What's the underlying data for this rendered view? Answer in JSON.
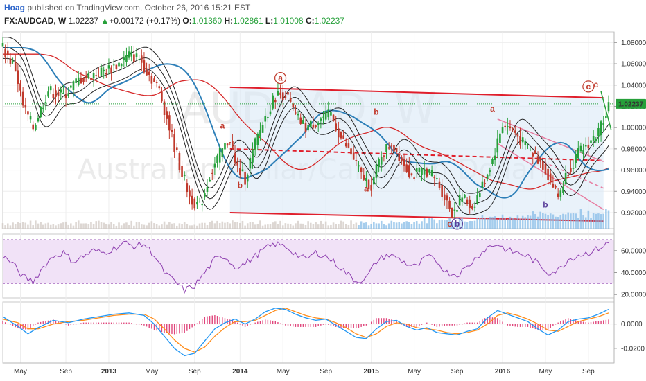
{
  "header": {
    "publisher": "Hoag",
    "published_text": "published on TradingView.com, October 26, 2016 15:21 EST",
    "symbol": "FX:AUDCAD, W",
    "last": "1.02237",
    "change_arrow": "▲",
    "change": "+0.00172 (+0.17%)",
    "open_label": "O:",
    "open": "1.01360",
    "high_label": "H:",
    "high": "1.02861",
    "low_label": "L:",
    "low": "1.01008",
    "close_label": "C:",
    "close": "1.02237"
  },
  "watermark": {
    "symbol": "AUDCAD, W",
    "description": "Australian Dollar/Canadian Dollar"
  },
  "colors": {
    "up": "#26a03a",
    "down": "#c0392b",
    "channel": "#e01e2b",
    "channel_fill": "#dbeaf7",
    "ma_red": "#d62728",
    "ma_blue": "#2d7fb8",
    "rsi": "#8e3fb0",
    "rsi_band": "#f1e2f7",
    "macd": "#2196f3",
    "signal": "#ff8c1a",
    "hist": "#e0457b",
    "price_badge": "#26a03a"
  },
  "chart_data": [
    {
      "type": "candlestick",
      "panel": "price",
      "ylim": [
        0.905,
        1.09
      ],
      "y_ticks": [
        "1.08000",
        "1.06000",
        "1.04000",
        "1.02000",
        "1.00000",
        "0.98000",
        "0.96000",
        "0.94000",
        "0.92000"
      ],
      "y_tick_values": [
        1.08,
        1.06,
        1.04,
        1.02,
        1.0,
        0.98,
        0.96,
        0.94,
        0.92
      ],
      "last_price": "1.02237",
      "last_value": 1.02237,
      "x_ticks": [
        "May",
        "Sep",
        "2013",
        "May",
        "Sep",
        "2014",
        "May",
        "Sep",
        "2015",
        "May",
        "Sep",
        "2016",
        "May",
        "Sep"
      ],
      "x_tick_weeks": [
        7,
        25,
        42,
        59,
        76,
        94,
        111,
        128,
        146,
        163,
        180,
        198,
        215,
        232
      ],
      "price_path": [
        [
          0,
          1.075
        ],
        [
          5,
          1.055
        ],
        [
          8,
          1.02
        ],
        [
          12,
          1.0
        ],
        [
          18,
          1.035
        ],
        [
          24,
          1.03
        ],
        [
          30,
          1.045
        ],
        [
          36,
          1.05
        ],
        [
          42,
          1.055
        ],
        [
          46,
          1.06
        ],
        [
          50,
          1.068
        ],
        [
          54,
          1.065
        ],
        [
          58,
          1.05
        ],
        [
          62,
          1.035
        ],
        [
          66,
          1.0
        ],
        [
          70,
          0.965
        ],
        [
          74,
          0.935
        ],
        [
          78,
          0.925
        ],
        [
          82,
          0.955
        ],
        [
          86,
          0.975
        ],
        [
          90,
          0.99
        ],
        [
          92,
          0.965
        ],
        [
          96,
          0.952
        ],
        [
          100,
          0.985
        ],
        [
          104,
          1.01
        ],
        [
          108,
          1.03
        ],
        [
          112,
          1.032
        ],
        [
          116,
          1.01
        ],
        [
          120,
          1.0
        ],
        [
          126,
          1.008
        ],
        [
          130,
          1.012
        ],
        [
          134,
          0.99
        ],
        [
          138,
          0.975
        ],
        [
          142,
          0.955
        ],
        [
          146,
          0.945
        ],
        [
          150,
          0.975
        ],
        [
          154,
          0.985
        ],
        [
          158,
          0.97
        ],
        [
          162,
          0.955
        ],
        [
          168,
          0.96
        ],
        [
          172,
          0.95
        ],
        [
          176,
          0.93
        ],
        [
          178,
          0.92
        ],
        [
          182,
          0.935
        ],
        [
          186,
          0.925
        ],
        [
          190,
          0.945
        ],
        [
          194,
          0.97
        ],
        [
          198,
          1.003
        ],
        [
          202,
          0.998
        ],
        [
          206,
          0.985
        ],
        [
          210,
          0.975
        ],
        [
          214,
          0.965
        ],
        [
          218,
          0.945
        ],
        [
          220,
          0.935
        ],
        [
          224,
          0.96
        ],
        [
          228,
          0.975
        ],
        [
          232,
          0.985
        ],
        [
          236,
          0.995
        ],
        [
          238,
          1.01
        ],
        [
          240,
          1.02237
        ]
      ],
      "wave_labels": [
        {
          "text": "a",
          "week": 87,
          "price": 0.999,
          "circled": false,
          "color": "#c0392b"
        },
        {
          "text": "b",
          "week": 94,
          "price": 0.943,
          "circled": false,
          "color": "#c0392b"
        },
        {
          "text": "a",
          "week": 110,
          "price": 1.044,
          "circled": true,
          "color": "#c0392b"
        },
        {
          "text": "b",
          "week": 148,
          "price": 1.012,
          "circled": false,
          "color": "#c0392b"
        },
        {
          "text": "a",
          "week": 144,
          "price": 0.94,
          "circled": false,
          "color": "#c0392b"
        },
        {
          "text": "c",
          "week": 177,
          "price": 0.907,
          "circled": false,
          "color": "#c0392b"
        },
        {
          "text": "b",
          "week": 180,
          "price": 0.907,
          "circled": true,
          "color": "#5a3f9a"
        },
        {
          "text": "a",
          "week": 194,
          "price": 1.015,
          "circled": false,
          "color": "#c0392b"
        },
        {
          "text": "b",
          "week": 215,
          "price": 0.925,
          "circled": false,
          "color": "#5a3f9a"
        },
        {
          "text": "c",
          "week": 232,
          "price": 1.036,
          "circled": true,
          "color": "#c0392b"
        },
        {
          "text": "c",
          "week": 235,
          "price": 1.038,
          "circled": false,
          "color": "#c0392b"
        }
      ]
    },
    {
      "type": "line",
      "panel": "rsi",
      "name": "RSI",
      "ylim": [
        17,
        75
      ],
      "y_ticks": [
        "60.0000",
        "40.0000",
        "20.0000"
      ],
      "y_tick_values": [
        60,
        40,
        20
      ],
      "band": [
        30,
        70
      ],
      "points": [
        [
          0,
          55
        ],
        [
          4,
          48
        ],
        [
          8,
          36
        ],
        [
          12,
          32
        ],
        [
          16,
          45
        ],
        [
          20,
          55
        ],
        [
          24,
          58
        ],
        [
          28,
          50
        ],
        [
          32,
          55
        ],
        [
          36,
          60
        ],
        [
          40,
          58
        ],
        [
          44,
          62
        ],
        [
          48,
          67
        ],
        [
          52,
          64
        ],
        [
          56,
          66
        ],
        [
          60,
          56
        ],
        [
          64,
          40
        ],
        [
          68,
          32
        ],
        [
          72,
          24
        ],
        [
          76,
          28
        ],
        [
          80,
          40
        ],
        [
          84,
          52
        ],
        [
          88,
          55
        ],
        [
          92,
          45
        ],
        [
          96,
          48
        ],
        [
          100,
          55
        ],
        [
          104,
          62
        ],
        [
          108,
          66
        ],
        [
          112,
          64
        ],
        [
          116,
          57
        ],
        [
          120,
          52
        ],
        [
          124,
          58
        ],
        [
          128,
          55
        ],
        [
          132,
          48
        ],
        [
          136,
          40
        ],
        [
          140,
          32
        ],
        [
          144,
          35
        ],
        [
          148,
          50
        ],
        [
          152,
          56
        ],
        [
          156,
          54
        ],
        [
          160,
          48
        ],
        [
          164,
          45
        ],
        [
          168,
          55
        ],
        [
          172,
          50
        ],
        [
          176,
          40
        ],
        [
          180,
          38
        ],
        [
          184,
          45
        ],
        [
          188,
          55
        ],
        [
          192,
          63
        ],
        [
          196,
          66
        ],
        [
          200,
          60
        ],
        [
          204,
          58
        ],
        [
          208,
          55
        ],
        [
          212,
          48
        ],
        [
          216,
          40
        ],
        [
          220,
          42
        ],
        [
          224,
          52
        ],
        [
          228,
          56
        ],
        [
          232,
          58
        ],
        [
          236,
          62
        ],
        [
          240,
          67
        ]
      ]
    },
    {
      "type": "line",
      "panel": "macd",
      "name": "MACD",
      "ylim": [
        -0.032,
        0.018
      ],
      "y_ticks": [
        "0.0000",
        "-0.0200"
      ],
      "y_tick_values": [
        0,
        -0.02
      ],
      "series": [
        {
          "name": "MACD",
          "points": [
            [
              0,
              0.006
            ],
            [
              6,
              -0.002
            ],
            [
              10,
              -0.008
            ],
            [
              14,
              -0.003
            ],
            [
              20,
              0.003
            ],
            [
              26,
              0.001
            ],
            [
              32,
              0.004
            ],
            [
              38,
              0.006
            ],
            [
              44,
              0.008
            ],
            [
              50,
              0.009
            ],
            [
              56,
              0.007
            ],
            [
              60,
              0.0
            ],
            [
              64,
              -0.01
            ],
            [
              68,
              -0.02
            ],
            [
              72,
              -0.026
            ],
            [
              76,
              -0.024
            ],
            [
              80,
              -0.014
            ],
            [
              84,
              -0.004
            ],
            [
              88,
              0.001
            ],
            [
              92,
              0.004
            ],
            [
              96,
              0.0
            ],
            [
              100,
              0.004
            ],
            [
              104,
              0.01
            ],
            [
              108,
              0.013
            ],
            [
              112,
              0.012
            ],
            [
              116,
              0.008
            ],
            [
              120,
              0.005
            ],
            [
              124,
              0.003
            ],
            [
              128,
              0.004
            ],
            [
              132,
              -0.001
            ],
            [
              136,
              -0.006
            ],
            [
              140,
              -0.011
            ],
            [
              144,
              -0.012
            ],
            [
              148,
              -0.004
            ],
            [
              152,
              0.002
            ],
            [
              156,
              0.003
            ],
            [
              160,
              -0.002
            ],
            [
              164,
              -0.005
            ],
            [
              168,
              -0.003
            ],
            [
              172,
              -0.007
            ],
            [
              176,
              -0.008
            ],
            [
              180,
              -0.009
            ],
            [
              184,
              -0.006
            ],
            [
              188,
              -0.004
            ],
            [
              192,
              0.005
            ],
            [
              196,
              0.011
            ],
            [
              200,
              0.008
            ],
            [
              204,
              0.005
            ],
            [
              208,
              0.002
            ],
            [
              212,
              -0.004
            ],
            [
              216,
              -0.009
            ],
            [
              220,
              -0.005
            ],
            [
              224,
              0.002
            ],
            [
              228,
              0.004
            ],
            [
              232,
              0.005
            ],
            [
              236,
              0.008
            ],
            [
              240,
              0.012
            ]
          ]
        },
        {
          "name": "Signal",
          "points": [
            [
              0,
              0.004
            ],
            [
              6,
              0.001
            ],
            [
              10,
              -0.004
            ],
            [
              14,
              -0.004
            ],
            [
              20,
              0.0
            ],
            [
              26,
              0.002
            ],
            [
              32,
              0.003
            ],
            [
              38,
              0.005
            ],
            [
              44,
              0.007
            ],
            [
              50,
              0.008
            ],
            [
              56,
              0.008
            ],
            [
              60,
              0.004
            ],
            [
              64,
              -0.004
            ],
            [
              68,
              -0.013
            ],
            [
              72,
              -0.02
            ],
            [
              76,
              -0.023
            ],
            [
              80,
              -0.019
            ],
            [
              84,
              -0.01
            ],
            [
              88,
              -0.003
            ],
            [
              92,
              0.002
            ],
            [
              96,
              0.002
            ],
            [
              100,
              0.003
            ],
            [
              104,
              0.007
            ],
            [
              108,
              0.011
            ],
            [
              112,
              0.013
            ],
            [
              116,
              0.01
            ],
            [
              120,
              0.007
            ],
            [
              124,
              0.005
            ],
            [
              128,
              0.004
            ],
            [
              132,
              0.001
            ],
            [
              136,
              -0.003
            ],
            [
              140,
              -0.008
            ],
            [
              144,
              -0.011
            ],
            [
              148,
              -0.008
            ],
            [
              152,
              -0.002
            ],
            [
              156,
              0.001
            ],
            [
              160,
              0.0
            ],
            [
              164,
              -0.003
            ],
            [
              168,
              -0.004
            ],
            [
              172,
              -0.005
            ],
            [
              176,
              -0.007
            ],
            [
              180,
              -0.008
            ],
            [
              184,
              -0.007
            ],
            [
              188,
              -0.005
            ],
            [
              192,
              0.0
            ],
            [
              196,
              0.007
            ],
            [
              200,
              0.009
            ],
            [
              204,
              0.007
            ],
            [
              208,
              0.004
            ],
            [
              212,
              0.0
            ],
            [
              216,
              -0.005
            ],
            [
              220,
              -0.006
            ],
            [
              224,
              -0.002
            ],
            [
              228,
              0.002
            ],
            [
              232,
              0.004
            ],
            [
              236,
              0.006
            ],
            [
              240,
              0.009
            ]
          ]
        }
      ]
    }
  ]
}
